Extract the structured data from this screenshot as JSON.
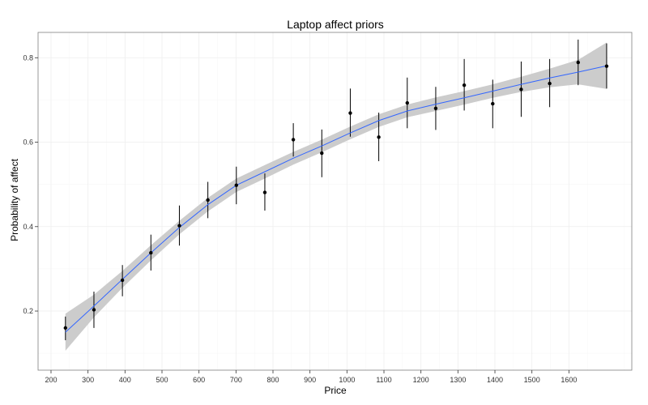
{
  "chart_data": {
    "type": "scatter",
    "title": "Laptop affect priors",
    "xlabel": "Price",
    "ylabel": "Probability of affect",
    "xlim": [
      165,
      1770
    ],
    "ylim": [
      0.06,
      0.86
    ],
    "x_ticks": [
      200,
      300,
      400,
      500,
      600,
      700,
      800,
      900,
      1000,
      1100,
      1200,
      1300,
      1400,
      1500,
      1600
    ],
    "y_ticks": [
      0.2,
      0.4,
      0.6,
      0.8
    ],
    "grid": true,
    "colors": {
      "panel": "#ffffff",
      "grid": "#eeeeee",
      "border": "#7f7f7f",
      "ribbon": "#cccccc",
      "smooth": "#3366ff",
      "point": "#000000"
    },
    "points": [
      {
        "x": 239,
        "y": 0.16,
        "lo": 0.131,
        "hi": 0.187
      },
      {
        "x": 316,
        "y": 0.203,
        "lo": 0.16,
        "hi": 0.246
      },
      {
        "x": 393,
        "y": 0.273,
        "lo": 0.235,
        "hi": 0.309
      },
      {
        "x": 470,
        "y": 0.338,
        "lo": 0.296,
        "hi": 0.381
      },
      {
        "x": 547,
        "y": 0.402,
        "lo": 0.355,
        "hi": 0.45
      },
      {
        "x": 624,
        "y": 0.463,
        "lo": 0.42,
        "hi": 0.506
      },
      {
        "x": 701,
        "y": 0.498,
        "lo": 0.453,
        "hi": 0.542
      },
      {
        "x": 778,
        "y": 0.481,
        "lo": 0.438,
        "hi": 0.526
      },
      {
        "x": 855,
        "y": 0.606,
        "lo": 0.566,
        "hi": 0.645
      },
      {
        "x": 932,
        "y": 0.574,
        "lo": 0.517,
        "hi": 0.63
      },
      {
        "x": 1009,
        "y": 0.669,
        "lo": 0.613,
        "hi": 0.727
      },
      {
        "x": 1086,
        "y": 0.612,
        "lo": 0.555,
        "hi": 0.67
      },
      {
        "x": 1163,
        "y": 0.693,
        "lo": 0.633,
        "hi": 0.753
      },
      {
        "x": 1240,
        "y": 0.68,
        "lo": 0.629,
        "hi": 0.731
      },
      {
        "x": 1317,
        "y": 0.735,
        "lo": 0.675,
        "hi": 0.797
      },
      {
        "x": 1394,
        "y": 0.691,
        "lo": 0.633,
        "hi": 0.748
      },
      {
        "x": 1471,
        "y": 0.725,
        "lo": 0.66,
        "hi": 0.791
      },
      {
        "x": 1548,
        "y": 0.739,
        "lo": 0.683,
        "hi": 0.797
      },
      {
        "x": 1625,
        "y": 0.789,
        "lo": 0.735,
        "hi": 0.843
      },
      {
        "x": 1702,
        "y": 0.78,
        "lo": 0.727,
        "hi": 0.834
      }
    ],
    "smooth": [
      {
        "x": 239,
        "y": 0.15,
        "lo": 0.106,
        "hi": 0.194
      },
      {
        "x": 316,
        "y": 0.212,
        "lo": 0.185,
        "hi": 0.239
      },
      {
        "x": 393,
        "y": 0.275,
        "lo": 0.255,
        "hi": 0.295
      },
      {
        "x": 470,
        "y": 0.338,
        "lo": 0.32,
        "hi": 0.356
      },
      {
        "x": 547,
        "y": 0.398,
        "lo": 0.382,
        "hi": 0.414
      },
      {
        "x": 624,
        "y": 0.452,
        "lo": 0.436,
        "hi": 0.468
      },
      {
        "x": 701,
        "y": 0.498,
        "lo": 0.482,
        "hi": 0.514
      },
      {
        "x": 778,
        "y": 0.53,
        "lo": 0.514,
        "hi": 0.546
      },
      {
        "x": 855,
        "y": 0.562,
        "lo": 0.547,
        "hi": 0.577
      },
      {
        "x": 932,
        "y": 0.591,
        "lo": 0.576,
        "hi": 0.606
      },
      {
        "x": 1009,
        "y": 0.622,
        "lo": 0.607,
        "hi": 0.637
      },
      {
        "x": 1086,
        "y": 0.651,
        "lo": 0.636,
        "hi": 0.666
      },
      {
        "x": 1163,
        "y": 0.674,
        "lo": 0.659,
        "hi": 0.689
      },
      {
        "x": 1240,
        "y": 0.69,
        "lo": 0.674,
        "hi": 0.706
      },
      {
        "x": 1317,
        "y": 0.705,
        "lo": 0.689,
        "hi": 0.721
      },
      {
        "x": 1394,
        "y": 0.721,
        "lo": 0.705,
        "hi": 0.737
      },
      {
        "x": 1471,
        "y": 0.737,
        "lo": 0.719,
        "hi": 0.755
      },
      {
        "x": 1548,
        "y": 0.752,
        "lo": 0.73,
        "hi": 0.774
      },
      {
        "x": 1625,
        "y": 0.766,
        "lo": 0.737,
        "hi": 0.795
      },
      {
        "x": 1702,
        "y": 0.781,
        "lo": 0.726,
        "hi": 0.836
      }
    ]
  }
}
